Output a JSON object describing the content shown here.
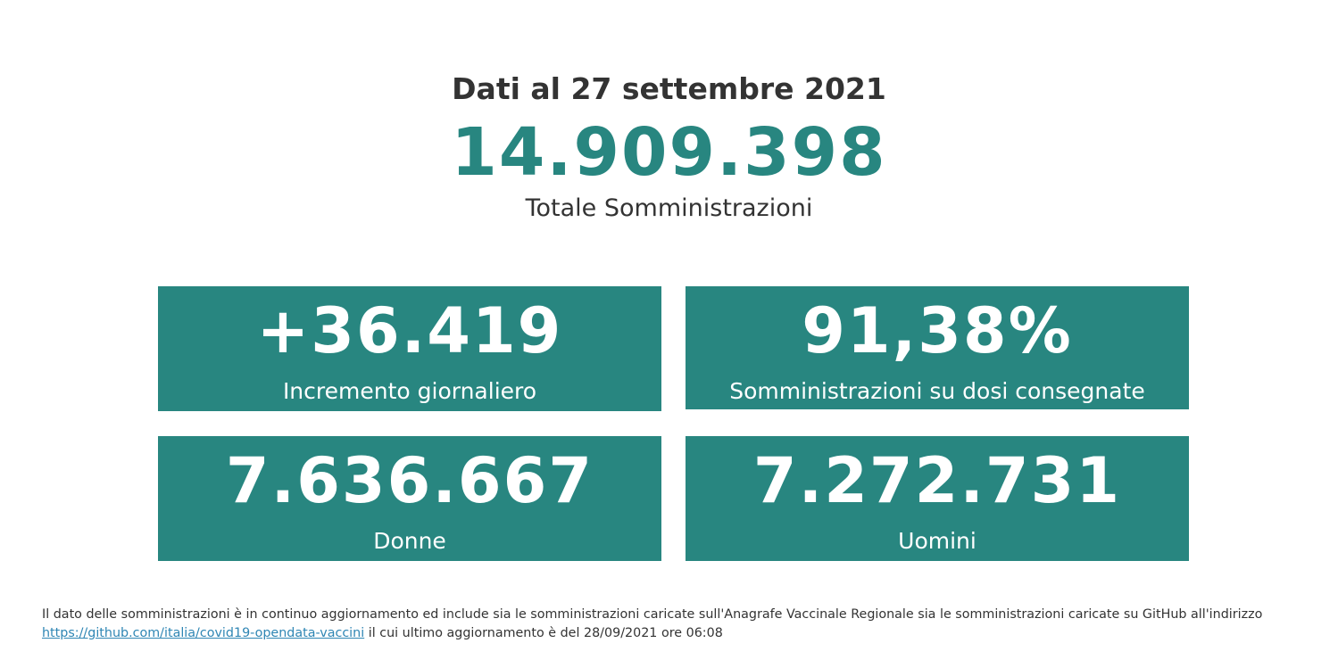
{
  "header": {
    "date_line": "Dati al 27 settembre 2021",
    "total_value": "14.909.398",
    "total_label": "Totale Somministrazioni"
  },
  "cards": [
    {
      "value": "+36.419",
      "label": "Incremento giornaliero"
    },
    {
      "value": "91,38%",
      "label": "Somministrazioni su dosi consegnate"
    },
    {
      "value": "7.636.667",
      "label": "Donne"
    },
    {
      "value": "7.272.731",
      "label": "Uomini"
    }
  ],
  "footnote": {
    "text_before": "Il dato delle somministrazioni è in continuo aggiornamento ed include sia le somministrazioni caricate sull'Anagrafe Vaccinale Regionale sia le somministrazioni caricate su GitHub all'indirizzo",
    "link_text": "https://github.com/italia/covid19-opendata-vaccini",
    "text_after": " il cui ultimo aggiornamento è del 28/09/2021 ore 06:08"
  },
  "colors": {
    "accent": "#288680",
    "text": "#333333",
    "link": "#2f86b4",
    "background": "#ffffff"
  }
}
